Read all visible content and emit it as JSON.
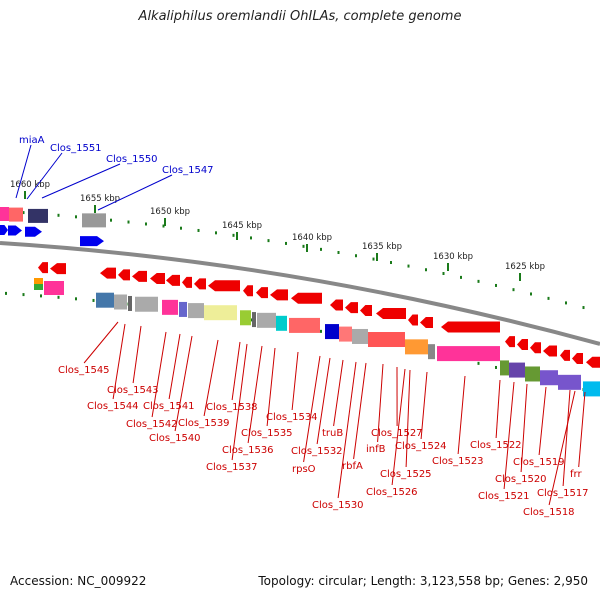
{
  "title": "Alkaliphilus oremlandii OhILAs, complete genome",
  "footer": {
    "accession": "Accession: NC_009922",
    "summary": "Topology: circular; Length: 3,123,558 bp; Genes: 2,950"
  },
  "scale_labels": [
    "1660 kbp",
    "1655 kbp",
    "1650 kbp",
    "1645 kbp",
    "1640 kbp",
    "1635 kbp",
    "1630 kbp",
    "1625 kbp"
  ],
  "colors": {
    "forward_label": "#0000cc",
    "reverse_label": "#cc0000",
    "backbone": "#888888",
    "tick": "#1a7a1a",
    "forward_arrow": "#0000ee",
    "reverse_arrow": "#ee0000"
  },
  "forward_genes": [
    "miaA",
    "Clos_1551",
    "Clos_1550",
    "Clos_1547"
  ],
  "reverse_genes": [
    "Clos_1545",
    "Clos_1543",
    "Clos_1544",
    "Clos_1542",
    "Clos_1541",
    "Clos_1540",
    "Clos_1539",
    "Clos_1538",
    "Clos_1537",
    "Clos_1536",
    "Clos_1535",
    "Clos_1534",
    "rpsO",
    "Clos_1532",
    "truB",
    "Clos_1530",
    "rbfA",
    "infB",
    "Clos_1527",
    "Clos_1526",
    "Clos_1525",
    "Clos_1524",
    "Clos_1523",
    "Clos_1522",
    "Clos_1521",
    "Clos_1520",
    "Clos_1519",
    "Clos_1518",
    "Clos_1517",
    "frr"
  ]
}
